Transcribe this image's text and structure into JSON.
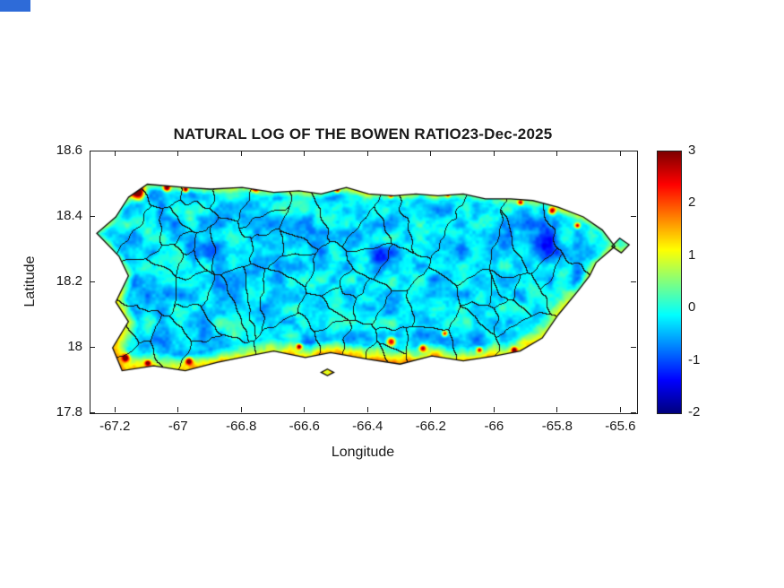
{
  "window": {
    "chrome_color": "#2e6bd8"
  },
  "figure": {
    "background": "#ffffff",
    "axes_color": "#1f1f1f",
    "font_color": "#1a1a1a"
  },
  "chart_data": {
    "type": "heatmap",
    "title": "NATURAL LOG OF THE BOWEN RATIO23-Dec-2025",
    "xlabel": "Longitude",
    "ylabel": "Latitude",
    "region": "Puerto Rico island with municipal boundaries",
    "xlim": [
      -67.28,
      -65.55
    ],
    "ylim": [
      17.8,
      18.6
    ],
    "xticks": [
      -67.2,
      -67,
      -66.8,
      -66.6,
      -66.4,
      -66.2,
      -66,
      -65.8,
      -65.6
    ],
    "xtick_labels": [
      "-67.2",
      "-67",
      "-66.8",
      "-66.6",
      "-66.4",
      "-66.2",
      "-66",
      "-65.8",
      "-65.6"
    ],
    "yticks": [
      18.6,
      18.4,
      18.2,
      18,
      17.8
    ],
    "ytick_labels": [
      "18.6",
      "18.4",
      "18.2",
      "18",
      "17.8"
    ],
    "grid": false,
    "colorbar": {
      "position": "right",
      "range": [
        -2,
        3
      ],
      "ticks": [
        3,
        2,
        1,
        0,
        -1,
        -2
      ],
      "tick_labels": [
        "3",
        "2",
        "1",
        "0",
        "-1",
        "-2"
      ],
      "colormap": "jet",
      "stops": [
        "#00008F",
        "#0000FF",
        "#00FFFF",
        "#7FFF7F",
        "#FFFF00",
        "#FF0000",
        "#7F0000"
      ]
    },
    "value_summary": {
      "interior_typical": [
        -1.0,
        0.3
      ],
      "coastal_band_typical": [
        0.5,
        1.5
      ],
      "hotspot_max": 3
    },
    "overlays": {
      "municipal_boundaries": true,
      "coastline": true
    },
    "island_outline": [
      [
        -67.16,
        18.46
      ],
      [
        -67.1,
        18.5
      ],
      [
        -66.98,
        18.49
      ],
      [
        -66.9,
        18.485
      ],
      [
        -66.8,
        18.49
      ],
      [
        -66.7,
        18.475
      ],
      [
        -66.62,
        18.48
      ],
      [
        -66.55,
        18.47
      ],
      [
        -66.47,
        18.49
      ],
      [
        -66.4,
        18.47
      ],
      [
        -66.32,
        18.465
      ],
      [
        -66.25,
        18.47
      ],
      [
        -66.18,
        18.465
      ],
      [
        -66.1,
        18.47
      ],
      [
        -66.03,
        18.455
      ],
      [
        -65.95,
        18.455
      ],
      [
        -65.88,
        18.45
      ],
      [
        -65.8,
        18.43
      ],
      [
        -65.72,
        18.4
      ],
      [
        -65.66,
        18.36
      ],
      [
        -65.62,
        18.31
      ],
      [
        -65.68,
        18.26
      ],
      [
        -65.7,
        18.22
      ],
      [
        -65.74,
        18.17
      ],
      [
        -65.8,
        18.1
      ],
      [
        -65.85,
        18.03
      ],
      [
        -65.92,
        17.99
      ],
      [
        -66.0,
        17.975
      ],
      [
        -66.1,
        17.96
      ],
      [
        -66.2,
        17.975
      ],
      [
        -66.3,
        17.95
      ],
      [
        -66.4,
        17.965
      ],
      [
        -66.52,
        17.985
      ],
      [
        -66.6,
        17.97
      ],
      [
        -66.7,
        17.99
      ],
      [
        -66.78,
        17.975
      ],
      [
        -66.88,
        17.955
      ],
      [
        -66.98,
        17.93
      ],
      [
        -67.08,
        17.945
      ],
      [
        -67.18,
        17.93
      ],
      [
        -67.21,
        18.0
      ],
      [
        -67.16,
        18.08
      ],
      [
        -67.2,
        18.14
      ],
      [
        -67.16,
        18.22
      ],
      [
        -67.19,
        18.28
      ],
      [
        -67.26,
        18.35
      ],
      [
        -67.2,
        18.4
      ]
    ],
    "islets": [
      [
        [
          -65.605,
          18.335
        ],
        [
          -65.575,
          18.315
        ],
        [
          -65.6,
          18.29
        ],
        [
          -65.63,
          18.31
        ]
      ],
      [
        [
          -66.53,
          17.935
        ],
        [
          -66.51,
          17.925
        ],
        [
          -66.53,
          17.915
        ],
        [
          -66.55,
          17.925
        ]
      ]
    ],
    "hotspots_red": [
      [
        -67.13,
        18.475,
        3.5,
        7
      ],
      [
        -67.04,
        18.49,
        3.2,
        4
      ],
      [
        -66.98,
        18.485,
        3.0,
        3
      ],
      [
        -66.76,
        18.49,
        3.2,
        4
      ],
      [
        -66.5,
        18.485,
        3.0,
        3
      ],
      [
        -66.33,
        18.468,
        2.8,
        3
      ],
      [
        -66.15,
        18.47,
        2.6,
        2.5
      ],
      [
        -65.82,
        18.42,
        3.0,
        4
      ],
      [
        -65.74,
        18.375,
        2.8,
        3
      ],
      [
        -65.92,
        18.445,
        2.6,
        3
      ],
      [
        -67.17,
        17.97,
        3.2,
        4
      ],
      [
        -66.97,
        17.96,
        3.0,
        4
      ],
      [
        -66.62,
        18.005,
        2.8,
        3
      ],
      [
        -66.33,
        18.02,
        3.3,
        5
      ],
      [
        -66.23,
        18.0,
        3.0,
        4
      ],
      [
        -66.16,
        18.045,
        2.8,
        3
      ],
      [
        -66.05,
        17.995,
        2.6,
        3
      ],
      [
        -65.94,
        17.995,
        2.6,
        3
      ],
      [
        -67.1,
        17.955,
        2.8,
        3
      ]
    ],
    "coldspots_blue": [
      [
        -65.85,
        18.32,
        -0.7,
        22
      ],
      [
        -66.12,
        18.3,
        -0.5,
        20
      ],
      [
        -66.55,
        18.35,
        -0.45,
        18
      ],
      [
        -66.9,
        18.3,
        -0.4,
        16
      ],
      [
        -66.35,
        18.28,
        -0.4,
        18
      ]
    ]
  }
}
